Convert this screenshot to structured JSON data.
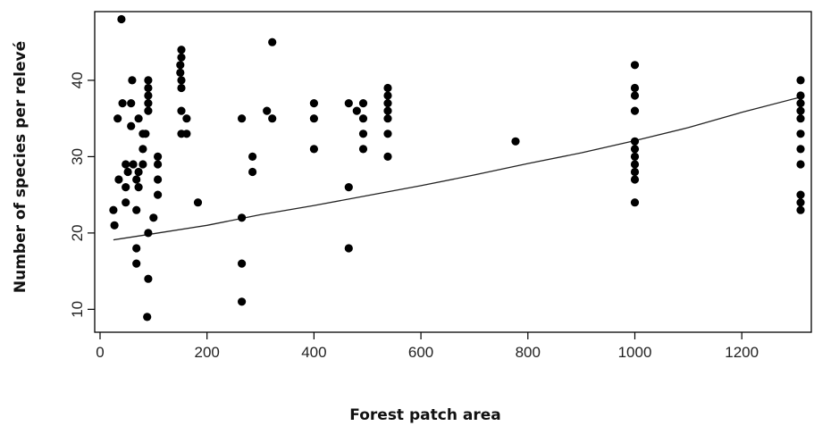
{
  "chart_data": {
    "type": "scatter",
    "title": "",
    "xlabel": "Forest patch area",
    "ylabel": "Number of species per relevé",
    "xlim": [
      -10,
      1330
    ],
    "ylim": [
      7,
      49
    ],
    "x_ticks": [
      0,
      200,
      400,
      600,
      800,
      1000,
      1200
    ],
    "y_ticks": [
      10,
      20,
      30,
      40
    ],
    "grid": false,
    "legend": "none",
    "marker_color": "#000000",
    "points": [
      {
        "x": 25,
        "y": 23
      },
      {
        "x": 27,
        "y": 21
      },
      {
        "x": 33,
        "y": 35
      },
      {
        "x": 35,
        "y": 27
      },
      {
        "x": 40,
        "y": 48
      },
      {
        "x": 42,
        "y": 37
      },
      {
        "x": 48,
        "y": 29
      },
      {
        "x": 48,
        "y": 26
      },
      {
        "x": 48,
        "y": 24
      },
      {
        "x": 52,
        "y": 28
      },
      {
        "x": 58,
        "y": 37
      },
      {
        "x": 58,
        "y": 34
      },
      {
        "x": 60,
        "y": 40
      },
      {
        "x": 62,
        "y": 29
      },
      {
        "x": 68,
        "y": 27
      },
      {
        "x": 68,
        "y": 23
      },
      {
        "x": 68,
        "y": 18
      },
      {
        "x": 68,
        "y": 16
      },
      {
        "x": 72,
        "y": 35
      },
      {
        "x": 72,
        "y": 28
      },
      {
        "x": 72,
        "y": 26
      },
      {
        "x": 80,
        "y": 33
      },
      {
        "x": 80,
        "y": 31
      },
      {
        "x": 80,
        "y": 29
      },
      {
        "x": 85,
        "y": 33
      },
      {
        "x": 88,
        "y": 9
      },
      {
        "x": 90,
        "y": 40
      },
      {
        "x": 90,
        "y": 39
      },
      {
        "x": 90,
        "y": 38
      },
      {
        "x": 90,
        "y": 37
      },
      {
        "x": 90,
        "y": 36
      },
      {
        "x": 90,
        "y": 20
      },
      {
        "x": 90,
        "y": 14
      },
      {
        "x": 100,
        "y": 22
      },
      {
        "x": 108,
        "y": 30
      },
      {
        "x": 108,
        "y": 29
      },
      {
        "x": 108,
        "y": 27
      },
      {
        "x": 108,
        "y": 25
      },
      {
        "x": 150,
        "y": 42
      },
      {
        "x": 150,
        "y": 41
      },
      {
        "x": 152,
        "y": 44
      },
      {
        "x": 152,
        "y": 43
      },
      {
        "x": 152,
        "y": 40
      },
      {
        "x": 152,
        "y": 39
      },
      {
        "x": 152,
        "y": 36
      },
      {
        "x": 152,
        "y": 33
      },
      {
        "x": 162,
        "y": 35
      },
      {
        "x": 162,
        "y": 33
      },
      {
        "x": 183,
        "y": 24
      },
      {
        "x": 265,
        "y": 35
      },
      {
        "x": 265,
        "y": 22
      },
      {
        "x": 265,
        "y": 16
      },
      {
        "x": 265,
        "y": 11
      },
      {
        "x": 285,
        "y": 30
      },
      {
        "x": 285,
        "y": 28
      },
      {
        "x": 312,
        "y": 36
      },
      {
        "x": 322,
        "y": 45
      },
      {
        "x": 322,
        "y": 35
      },
      {
        "x": 400,
        "y": 37
      },
      {
        "x": 400,
        "y": 35
      },
      {
        "x": 400,
        "y": 31
      },
      {
        "x": 465,
        "y": 37
      },
      {
        "x": 465,
        "y": 26
      },
      {
        "x": 465,
        "y": 18
      },
      {
        "x": 480,
        "y": 36
      },
      {
        "x": 492,
        "y": 37
      },
      {
        "x": 492,
        "y": 35
      },
      {
        "x": 492,
        "y": 33
      },
      {
        "x": 492,
        "y": 31
      },
      {
        "x": 538,
        "y": 39
      },
      {
        "x": 538,
        "y": 38
      },
      {
        "x": 538,
        "y": 37
      },
      {
        "x": 538,
        "y": 36
      },
      {
        "x": 538,
        "y": 35
      },
      {
        "x": 538,
        "y": 33
      },
      {
        "x": 538,
        "y": 30
      },
      {
        "x": 777,
        "y": 32
      },
      {
        "x": 1000,
        "y": 42
      },
      {
        "x": 1000,
        "y": 39
      },
      {
        "x": 1000,
        "y": 38
      },
      {
        "x": 1000,
        "y": 36
      },
      {
        "x": 1000,
        "y": 32
      },
      {
        "x": 1000,
        "y": 31
      },
      {
        "x": 1000,
        "y": 30
      },
      {
        "x": 1000,
        "y": 29
      },
      {
        "x": 1000,
        "y": 28
      },
      {
        "x": 1000,
        "y": 27
      },
      {
        "x": 1000,
        "y": 24
      },
      {
        "x": 1310,
        "y": 40
      },
      {
        "x": 1310,
        "y": 38
      },
      {
        "x": 1310,
        "y": 37
      },
      {
        "x": 1310,
        "y": 36
      },
      {
        "x": 1310,
        "y": 35
      },
      {
        "x": 1310,
        "y": 33
      },
      {
        "x": 1310,
        "y": 31
      },
      {
        "x": 1310,
        "y": 29
      },
      {
        "x": 1310,
        "y": 25
      },
      {
        "x": 1310,
        "y": 24
      },
      {
        "x": 1310,
        "y": 23
      }
    ],
    "fit_line": [
      {
        "x": 25,
        "y": 19.1
      },
      {
        "x": 100,
        "y": 19.9
      },
      {
        "x": 200,
        "y": 21.0
      },
      {
        "x": 300,
        "y": 22.4
      },
      {
        "x": 400,
        "y": 23.6
      },
      {
        "x": 500,
        "y": 24.9
      },
      {
        "x": 600,
        "y": 26.2
      },
      {
        "x": 700,
        "y": 27.6
      },
      {
        "x": 800,
        "y": 29.1
      },
      {
        "x": 900,
        "y": 30.5
      },
      {
        "x": 1000,
        "y": 32.1
      },
      {
        "x": 1100,
        "y": 33.8
      },
      {
        "x": 1200,
        "y": 35.8
      },
      {
        "x": 1310,
        "y": 37.8
      }
    ]
  }
}
